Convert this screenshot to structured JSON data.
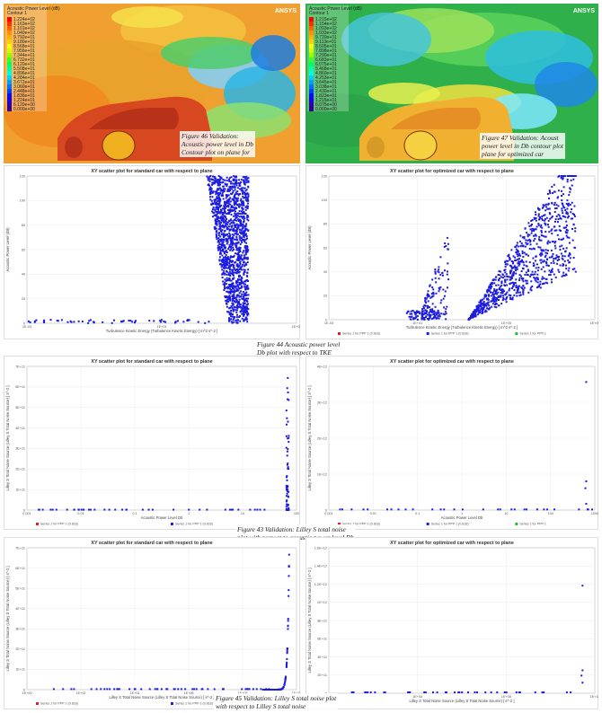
{
  "contours": [
    {
      "legend_title": "Acoustic Power Level (dB)",
      "legend_unit": "Contour 1",
      "legend_values": [
        "1.224e+02",
        "1.163e+02",
        "1.101e+02",
        "1.040e+02",
        "9.792e+01",
        "9.180e+01",
        "8.568e+01",
        "7.956e+01",
        "7.344e+01",
        "6.732e+01",
        "6.120e+01",
        "5.508e+01",
        "4.896e+01",
        "4.284e+01",
        "3.672e+01",
        "3.060e+01",
        "2.448e+01",
        "1.836e+01",
        "1.224e+01",
        "6.120e+00",
        "0.000e+00"
      ],
      "logo": "ANSYS",
      "colors": {
        "background": "#f0a030",
        "car": "#d84820",
        "wake": "#40b8e0"
      }
    },
    {
      "legend_title": "Acoustic Power Level (dB)",
      "legend_unit": "Contour 1",
      "legend_values": [
        "1.215e+02",
        "1.154e+02",
        "1.093e+02",
        "1.033e+02",
        "9.720e+01",
        "9.113e+01",
        "8.505e+01",
        "7.898e+01",
        "7.290e+01",
        "6.683e+01",
        "6.075e+01",
        "5.468e+01",
        "4.860e+01",
        "4.253e+01",
        "3.645e+01",
        "3.038e+01",
        "2.430e+01",
        "1.823e+01",
        "1.215e+01",
        "6.075e+00",
        "0.000e+00"
      ],
      "logo": "ANSYS",
      "colors": {
        "background": "#2fb04a",
        "car": "#f0b030",
        "wake": "#40b8e0"
      }
    }
  ],
  "captions": {
    "fig46": [
      "Figure 46 Validation:",
      "Acoustic power level in Db",
      "Contour plot on plane for"
    ],
    "fig47": [
      "Figure 47 Validation: Acoust",
      "power level in Db contour plot",
      "plane for optimized car"
    ],
    "fig44": [
      "Figure 44 Acoustic power level",
      "Db plot with respect to TKE"
    ],
    "fig43": [
      "Figure 43 Validation: Lilley S total noise",
      "plot with respect to acoustic power level Db"
    ],
    "fig45": [
      "Figure 45 Validation: Lilley S total noise plot",
      "with respect to Lilley S total noise"
    ]
  },
  "chart_data": [
    {
      "id": "tke-standard",
      "type": "scatter",
      "title": "XY scatter plot for standard car with respect to plane",
      "xlabel": "Turbulence Kinetic Energy (Turbulence Kinetic Energy) [ m^2 s^-2 ]",
      "ylabel": "Acoustic Power Level (dB)",
      "x_ticks": [
        "1E-03",
        "1E+01",
        "1E+05"
      ],
      "y_ticks": [
        "0",
        "20",
        "40",
        "60",
        "80",
        "100",
        "120"
      ],
      "xlim": [
        -3,
        6
      ],
      "ylim": [
        0,
        125
      ],
      "xscale": "log",
      "grid": true,
      "legend": [],
      "series": [
        {
          "color": "#1c1ce0",
          "shape": "plume",
          "x_center": 4.0,
          "x_spread": 1.0,
          "y_max": 125
        }
      ]
    },
    {
      "id": "tke-optimized",
      "type": "scatter",
      "title": "XY scatter plot for optimized car with respect to plane",
      "xlabel": "Turbulence Kinetic Energy (Turbulence Kinetic Energy) [ m^2 s^-2 ]",
      "ylabel": "Acoustic Power Level (dB)",
      "x_ticks": [
        "1E-03",
        "1E+01",
        "1E+05",
        "1E+09"
      ],
      "y_ticks": [
        "0",
        "20",
        "40",
        "60",
        "80",
        "100",
        "120"
      ],
      "xlim": [
        -3,
        9
      ],
      "ylim": [
        0,
        125
      ],
      "xscale": "log",
      "grid": true,
      "legend": [
        {
          "name": "Series 1 for PPP 1 (0.818)",
          "color": "#e02020"
        },
        {
          "name": "Series 1 for PPP 1 (0.818)",
          "color": "#2020e0"
        },
        {
          "name": "Series 1 for PPP 1",
          "color": "#20c020"
        }
      ],
      "series": [
        {
          "color": "#1c1ce0",
          "shape": "cloud",
          "x_center": 5.5,
          "x_spread": 2.2,
          "y_max": 125
        }
      ]
    },
    {
      "id": "lilley-apl-standard",
      "type": "scatter",
      "title": "XY scatter plot for standard car with respect to plane",
      "xlabel": "Acoustic Power Level Db",
      "ylabel": "Lilley S Total Noise Source (Lilley S Total Noise Source) [ s^-2 ]",
      "x_ticks": [
        "0.001",
        "0.01",
        "0.1",
        "1",
        "10",
        "100"
      ],
      "y_ticks": [
        "0",
        "1E+11",
        "2E+11",
        "3E+11",
        "4E+11",
        "5E+11",
        "6E+11",
        "7E+11"
      ],
      "xlim": [
        -3,
        2.3
      ],
      "ylim": [
        0,
        7.5
      ],
      "xscale": "log",
      "grid": true,
      "legend": [
        {
          "name": "Series 1 for PPP 1 (0.818)",
          "color": "#e02020"
        },
        {
          "name": "Series 1 for PPP 1 (0.818)",
          "color": "#2020e0"
        }
      ],
      "series": [
        {
          "color": "#1c1ce0",
          "shape": "spike",
          "x_end": 2.15,
          "y_max": 7.3
        }
      ]
    },
    {
      "id": "lilley-apl-optimized",
      "type": "scatter",
      "title": "XY scatter plot for optimized car with respect to plane",
      "xlabel": "Acoustic Power Level Db",
      "ylabel": "Lilley S Total Noise Source (Lilley S Total Noise Source) [ s^-2 ]",
      "x_ticks": [
        "0.001",
        "0.01",
        "0.1",
        "1",
        "10",
        "100",
        "1000"
      ],
      "y_ticks": [
        "0",
        "1E+12",
        "2E+12",
        "3E+12",
        "4E+12"
      ],
      "xlim": [
        -3,
        3.2
      ],
      "ylim": [
        0,
        4.6
      ],
      "xscale": "log",
      "grid": true,
      "legend": [
        {
          "name": "Series 1 for PPP 1 (0.818)",
          "color": "#e02020"
        },
        {
          "name": "Series 1 for PPP 1 (0.818)",
          "color": "#2020e0"
        },
        {
          "name": "Series 1 for PPP 1",
          "color": "#20c020"
        }
      ],
      "series": [
        {
          "color": "#1c1ce0",
          "shape": "sparse",
          "x_end": 3.0,
          "y_max": 4.1
        }
      ]
    },
    {
      "id": "lilley-self-standard",
      "type": "scatter",
      "title": "XY scatter plot for standard car with respect to plane",
      "xlabel": "Lilley S Total Noise Source (Lilley S Total Noise Source) [ s^-2 ]",
      "ylabel": "Lilley S Total Noise Source (Lilley S Total Noise Source) [ s^-2 ]",
      "x_ticks": [
        "1E+00",
        "1E+02",
        "1E+04",
        "1E+06",
        "1E+08",
        "1E+10"
      ],
      "y_ticks": [
        "0",
        "1E+11",
        "2E+11",
        "3E+11",
        "4E+11",
        "5E+11",
        "6E+11",
        "7E+11"
      ],
      "xlim": [
        0,
        11
      ],
      "ylim": [
        0,
        7.5
      ],
      "xscale": "log",
      "grid": true,
      "legend": [
        {
          "name": "Series 1 for PPP 1 (0.818)",
          "color": "#e02020"
        },
        {
          "name": "Series 1 for PPP 1 (0.818)",
          "color": "#2020e0"
        }
      ],
      "series": [
        {
          "color": "#1c1ce0",
          "shape": "exp",
          "x_end": 10.7,
          "y_max": 7.3
        }
      ]
    },
    {
      "id": "lilley-self-optimized",
      "type": "scatter",
      "title": "XY scatter plot for optimized car with respect to plane",
      "xlabel": "Lilley S Total Noise Source (Lilley S Total Noise Source) [ s^-2 ]",
      "ylabel": "Lilley S Total Noise Source (Lilley S Total Noise Source) [ s^-2 ]",
      "x_ticks": [
        "1E+00",
        "1E+04",
        "1E+08",
        "1E+12"
      ],
      "y_ticks": [
        "0",
        "2E+11",
        "4E+11",
        "6E+11",
        "8E+11",
        "1E+12",
        "1.2E+12",
        "1.4E+12",
        "1.6E+12"
      ],
      "xlim": [
        0,
        13
      ],
      "ylim": [
        0,
        1.65
      ],
      "xscale": "log",
      "grid": true,
      "legend": [],
      "series": [
        {
          "color": "#1c1ce0",
          "shape": "sparse2",
          "x_end": 12.4,
          "y_max": 1.22
        }
      ]
    }
  ]
}
